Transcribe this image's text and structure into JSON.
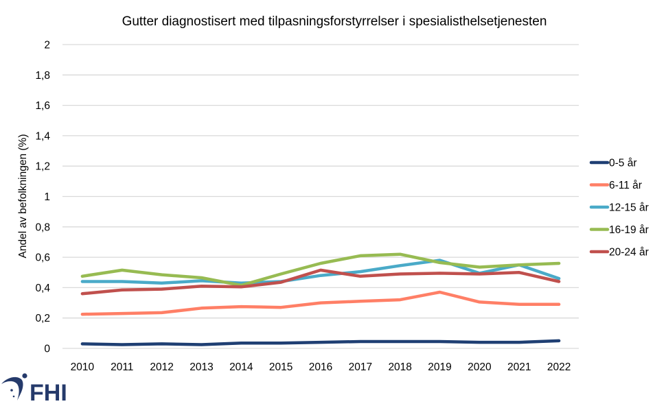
{
  "chart_data": {
    "type": "line",
    "title": "Gutter diagnostisert med tilpasningsforstyrrelser i spesialisthelsetjenesten",
    "xlabel": "",
    "ylabel": "Andel av befolkningen (%)",
    "ylim": [
      0,
      2
    ],
    "yticks": [
      0,
      0.2,
      0.4,
      0.6,
      0.8,
      1,
      1.2,
      1.4,
      1.6,
      1.8,
      2
    ],
    "ytick_labels": [
      "0",
      "0,2",
      "0,4",
      "0,6",
      "0,8",
      "1",
      "1,2",
      "1,4",
      "1,6",
      "1,8",
      "2"
    ],
    "grid": true,
    "legend_position": "right",
    "categories": [
      "2010",
      "2011",
      "2012",
      "2013",
      "2014",
      "2015",
      "2016",
      "2017",
      "2018",
      "2019",
      "2020",
      "2021",
      "2022"
    ],
    "series": [
      {
        "name": "0-5 år",
        "color": "#1f3f73",
        "values": [
          0.03,
          0.025,
          0.03,
          0.025,
          0.035,
          0.035,
          0.04,
          0.045,
          0.045,
          0.045,
          0.04,
          0.04,
          0.05
        ]
      },
      {
        "name": "6-11 år",
        "color": "#ff7f66",
        "values": [
          0.225,
          0.23,
          0.235,
          0.265,
          0.275,
          0.27,
          0.3,
          0.31,
          0.32,
          0.37,
          0.305,
          0.29,
          0.29
        ]
      },
      {
        "name": "12-15 år",
        "color": "#4aaac8",
        "values": [
          0.44,
          0.44,
          0.43,
          0.445,
          0.43,
          0.44,
          0.48,
          0.505,
          0.545,
          0.58,
          0.495,
          0.55,
          0.46
        ]
      },
      {
        "name": "16-19 år",
        "color": "#97bb52",
        "values": [
          0.475,
          0.515,
          0.485,
          0.465,
          0.415,
          0.49,
          0.56,
          0.61,
          0.62,
          0.565,
          0.535,
          0.55,
          0.56
        ]
      },
      {
        "name": "20-24 år",
        "color": "#c0504d",
        "values": [
          0.36,
          0.385,
          0.39,
          0.41,
          0.405,
          0.435,
          0.515,
          0.475,
          0.49,
          0.495,
          0.49,
          0.5,
          0.44
        ]
      }
    ]
  },
  "logo": {
    "text": "FHI",
    "color": "#253a6b"
  }
}
